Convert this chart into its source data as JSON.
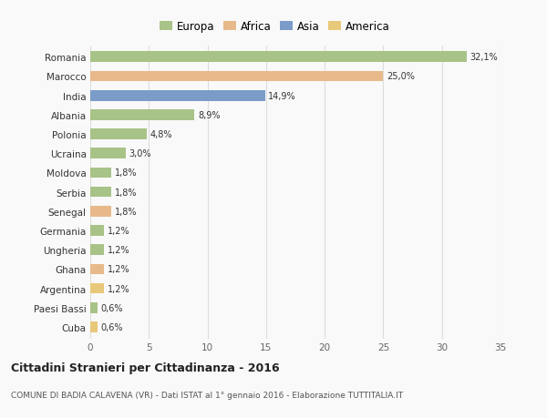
{
  "countries": [
    "Romania",
    "Marocco",
    "India",
    "Albania",
    "Polonia",
    "Ucraina",
    "Moldova",
    "Serbia",
    "Senegal",
    "Germania",
    "Ungheria",
    "Ghana",
    "Argentina",
    "Paesi Bassi",
    "Cuba"
  ],
  "values": [
    32.1,
    25.0,
    14.9,
    8.9,
    4.8,
    3.0,
    1.8,
    1.8,
    1.8,
    1.2,
    1.2,
    1.2,
    1.2,
    0.6,
    0.6
  ],
  "labels": [
    "32,1%",
    "25,0%",
    "14,9%",
    "8,9%",
    "4,8%",
    "3,0%",
    "1,8%",
    "1,8%",
    "1,8%",
    "1,2%",
    "1,2%",
    "1,2%",
    "1,2%",
    "0,6%",
    "0,6%"
  ],
  "continents": [
    "Europa",
    "Africa",
    "Asia",
    "Europa",
    "Europa",
    "Europa",
    "Europa",
    "Europa",
    "Africa",
    "Europa",
    "Europa",
    "Africa",
    "America",
    "Europa",
    "America"
  ],
  "colors": {
    "Europa": "#a8c387",
    "Africa": "#e8b98a",
    "Asia": "#7b9cc9",
    "America": "#e8c97a"
  },
  "xlim": [
    0,
    35
  ],
  "xticks": [
    0,
    5,
    10,
    15,
    20,
    25,
    30,
    35
  ],
  "title": "Cittadini Stranieri per Cittadinanza - 2016",
  "subtitle": "COMUNE DI BADIA CALAVENA (VR) - Dati ISTAT al 1° gennaio 2016 - Elaborazione TUTTITALIA.IT",
  "background_color": "#f9f9f9",
  "grid_color": "#dddddd",
  "bar_height": 0.55,
  "legend_order": [
    "Europa",
    "Africa",
    "Asia",
    "America"
  ]
}
